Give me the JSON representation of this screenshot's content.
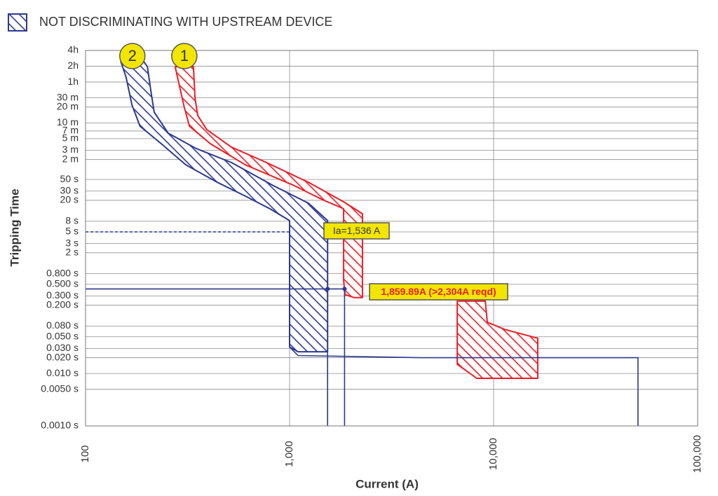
{
  "chart_data": {
    "type": "area",
    "legend_label": "NOT DISCRIMINATING WITH UPSTREAM DEVICE",
    "xlabel": "Current (A)",
    "ylabel": "Tripping Time",
    "xscale": "log",
    "yscale": "log",
    "grid": true,
    "xlim": [
      100,
      100000
    ],
    "ylim": [
      0.001,
      14400
    ],
    "xticks": [
      100,
      {
        "value": 1000,
        "label": "1,000"
      },
      {
        "value": 10000,
        "label": "10,000"
      },
      {
        "value": 100000,
        "label": "100,000"
      }
    ],
    "yticks": [
      {
        "value": 14400,
        "label": "4h"
      },
      {
        "value": 7200,
        "label": "2h"
      },
      {
        "value": 3600,
        "label": "1h"
      },
      {
        "value": 1800,
        "label": "30 m"
      },
      {
        "value": 1200,
        "label": "20 m"
      },
      {
        "value": 600,
        "label": "10 m"
      },
      {
        "value": 420,
        "label": "7 m"
      },
      {
        "value": 300,
        "label": "5 m"
      },
      {
        "value": 180,
        "label": "3 m"
      },
      {
        "value": 120,
        "label": "2 m"
      },
      {
        "value": 50,
        "label": "50 s"
      },
      {
        "value": 30,
        "label": "30 s"
      },
      {
        "value": 20,
        "label": "20 s"
      },
      {
        "value": 8,
        "label": "8 s"
      },
      {
        "value": 5,
        "label": "5 s"
      },
      {
        "value": 3,
        "label": "3 s"
      },
      {
        "value": 2,
        "label": "2 s"
      },
      {
        "value": 0.8,
        "label": "0.800 s"
      },
      {
        "value": 0.5,
        "label": "0.500 s"
      },
      {
        "value": 0.3,
        "label": "0.300 s"
      },
      {
        "value": 0.2,
        "label": "0.200 s"
      },
      {
        "value": 0.08,
        "label": "0.080 s"
      },
      {
        "value": 0.05,
        "label": "0.050 s"
      },
      {
        "value": 0.03,
        "label": "0.030 s"
      },
      {
        "value": 0.02,
        "label": "0.020 s"
      },
      {
        "value": 0.01,
        "label": "0.010 s"
      },
      {
        "value": 0.005,
        "label": "0.0050 s"
      },
      {
        "value": 0.001,
        "label": "0.0010 s"
      }
    ],
    "series": [
      {
        "name": "2",
        "color": "#2b3990",
        "x": [
          149,
          158,
          169,
          185,
          235,
          310,
          443,
          608,
          801,
          1000,
          1000,
          1100,
          1536,
          1536,
          1536,
          1238,
          834,
          519,
          349,
          254,
          217,
          209,
          201,
          193
        ],
        "y": [
          8770,
          4460,
          1300,
          518,
          240,
          95,
          44,
          24,
          13.8,
          8.2,
          0.032,
          0.026,
          0.026,
          3.8,
          8.2,
          17.6,
          38,
          105,
          194,
          381,
          958,
          2410,
          7060,
          8770
        ]
      },
      {
        "name": "1",
        "color": "#ed1c24",
        "x": [
          275,
          303,
          323,
          409,
          608,
          1057,
          1452,
          1840,
          1840,
          1868,
          2070,
          2276,
          2276,
          1840,
          1238,
          771,
          519,
          393,
          355,
          344,
          338
        ],
        "y": [
          7060,
          1300,
          518,
          240,
          95,
          38,
          20.5,
          13.8,
          0.6,
          0.32,
          0.28,
          0.28,
          11.1,
          18.7,
          44,
          105,
          206,
          445,
          822,
          1770,
          7060
        ]
      },
      {
        "color": "#ed1c24",
        "x": [
          6630,
          6630,
          8270,
          16450,
          16450,
          11350,
          9310,
          9100
        ],
        "y": [
          0.24,
          0.015,
          0.0081,
          0.0081,
          0.047,
          0.069,
          0.095,
          0.24
        ]
      }
    ],
    "lines": [
      {
        "color": "#2b3990",
        "x": [
          1000,
          1100,
          4395,
          51000,
          51000
        ],
        "y": [
          0.032,
          0.022,
          0.02,
          0.02,
          0.001
        ]
      },
      {
        "color": "#2b3990",
        "x": [
          1536,
          1536
        ],
        "y": [
          0.026,
          0.001
        ]
      },
      {
        "color": "#2b3990",
        "x": [
          1859.89,
          1859.89
        ],
        "y": [
          0.41,
          0.001
        ]
      },
      {
        "color": "#2b3990",
        "x": [
          100,
          1859.89
        ],
        "y": [
          0.41,
          0.41
        ]
      },
      {
        "color": "#2b3990",
        "x": [
          100,
          1000
        ],
        "y": [
          5,
          5
        ],
        "dashed": true
      }
    ],
    "points": {
      "color": "#2b3990",
      "x": [
        1536,
        1859.89
      ],
      "y": [
        0.41,
        0.41
      ]
    },
    "annotations": [
      {
        "text": "Ia=1,536 A",
        "color": "#333333"
      },
      {
        "text": "1,859.89A (>2,304A reqd)",
        "color": "#ed1c24"
      }
    ]
  }
}
